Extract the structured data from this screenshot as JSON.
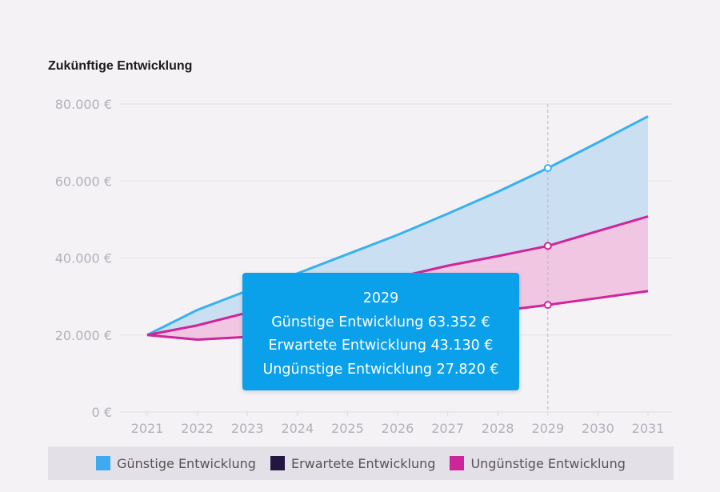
{
  "chart_data": {
    "type": "area",
    "title": "Zukünftige Entwicklung",
    "categories": [
      "2021",
      "2022",
      "2023",
      "2024",
      "2025",
      "2026",
      "2027",
      "2028",
      "2029",
      "2030",
      "2031"
    ],
    "y_ticks": [
      "0 €",
      "20.000 €",
      "40.000 €",
      "60.000 €",
      "80.000 €"
    ],
    "ylim": [
      0,
      80000
    ],
    "grid": true,
    "series": [
      {
        "name": "Günstige Entwicklung",
        "color": "#39b1ee",
        "values": [
          20000,
          26500,
          31500,
          36000,
          41000,
          46000,
          51500,
          57200,
          63352,
          70000,
          76800
        ]
      },
      {
        "name": "Erwartete Entwicklung",
        "color": "#cf259a",
        "values": [
          20000,
          22500,
          25800,
          29000,
          32000,
          35000,
          38000,
          40500,
          43130,
          47000,
          50800
        ]
      },
      {
        "name": "Ungünstige Entwicklung",
        "color": "#cf259a",
        "values": [
          20000,
          18800,
          19500,
          20600,
          21800,
          23200,
          24600,
          26200,
          27820,
          29600,
          31400
        ]
      }
    ],
    "tooltip": {
      "year": "2029",
      "lines": [
        "Günstige Entwicklung 63.352 €",
        "Erwartete Entwicklung 43.130 €",
        "Ungünstige Entwicklung 27.820 €"
      ]
    },
    "legend": {
      "position": "bottom",
      "items": [
        {
          "label": "Günstige Entwicklung",
          "color": "#3eaaf0"
        },
        {
          "label": "Erwartete Entwicklung",
          "color": "#23173f"
        },
        {
          "label": "Ungünstige Entwicklung",
          "color": "#cf259a"
        }
      ]
    }
  }
}
